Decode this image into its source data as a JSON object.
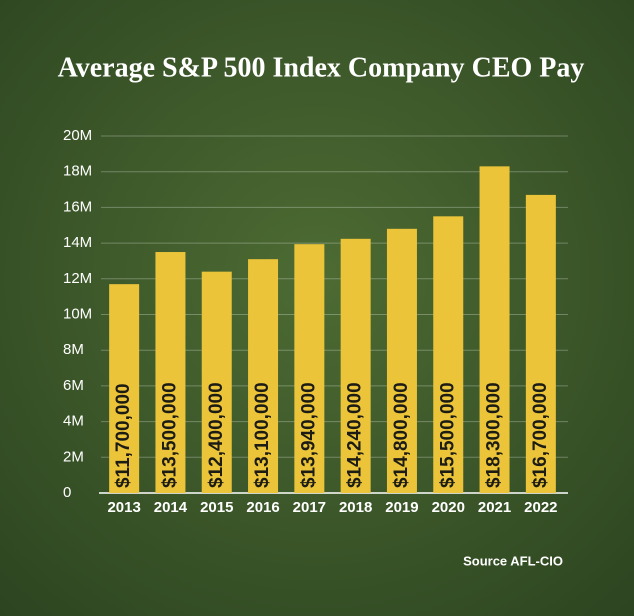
{
  "chart_data": {
    "type": "bar",
    "title": "Average S&P 500 Index Company CEO Pay",
    "source": "Source AFL-CIO",
    "categories": [
      "2013",
      "2014",
      "2015",
      "2016",
      "2017",
      "2018",
      "2019",
      "2020",
      "2021",
      "2022"
    ],
    "values": [
      11700000,
      13500000,
      12400000,
      13100000,
      13940000,
      14240000,
      14800000,
      15500000,
      18300000,
      16700000
    ],
    "value_labels": [
      "$11,700,000",
      "$13,500,000",
      "$12,400,000",
      "$13,100,000",
      "$13,940,000",
      "$14,240,000",
      "$14,800,000",
      "$15,500,000",
      "$18,300,000",
      "$16,700,000"
    ],
    "color": "#ebc43a",
    "ylim": [
      0,
      20000000
    ],
    "yticks": [
      0,
      {
        "value": 2000000,
        "label": "2M"
      },
      {
        "value": 4000000,
        "label": "4M"
      },
      {
        "value": 6000000,
        "label": "6M"
      },
      {
        "value": 8000000,
        "label": "8M"
      },
      {
        "value": 10000000,
        "label": "10M"
      },
      {
        "value": 12000000,
        "label": "12M"
      },
      {
        "value": 14000000,
        "label": "14M"
      },
      {
        "value": 16000000,
        "label": "16M"
      },
      {
        "value": 18000000,
        "label": "18M"
      },
      {
        "value": 20000000,
        "label": "20M"
      }
    ],
    "grid": true
  }
}
